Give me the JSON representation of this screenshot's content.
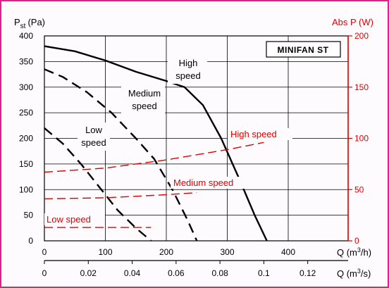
{
  "chart_data": {
    "type": "line",
    "title": "MINIFAN ST",
    "left_axis_label_main": "P",
    "left_axis_label_sub": "st",
    "left_axis_label_unit": "(Pa)",
    "right_axis_label": "Abs P (W)",
    "x_axis_label_main": "Q (m",
    "x_axis_label_sup": "3",
    "x_axis_label_unit": "/h)",
    "x2_axis_label_main": "Q (m",
    "x2_axis_label_sup": "3",
    "x2_axis_label_unit": "/s)",
    "xlim": [
      0,
      500
    ],
    "ylim_left": [
      0,
      400
    ],
    "ylim_right": [
      0,
      200
    ],
    "x_ticks": [
      "0",
      "100",
      "200",
      "300",
      "400"
    ],
    "x2_ticks": [
      "0",
      "0.02",
      "0.04",
      "0.06",
      "0.08",
      "0.1",
      "0.12"
    ],
    "y_ticks_left": [
      "0",
      "50",
      "100",
      "150",
      "200",
      "250",
      "300",
      "350",
      "400"
    ],
    "y_ticks_right": [
      "0",
      "50",
      "100",
      "150",
      "200"
    ],
    "grid": true,
    "colors": {
      "pressure": "#000000",
      "power": "#e00000",
      "border": "#e0218a"
    },
    "pressure_series": [
      {
        "name": "High speed",
        "label_line1": "High",
        "label_line2": "speed",
        "x": [
          0,
          50,
          100,
          150,
          200,
          230,
          260,
          290,
          320,
          345,
          365
        ],
        "y": [
          380,
          370,
          352,
          330,
          312,
          300,
          265,
          200,
          120,
          50,
          0
        ]
      },
      {
        "name": "Medium speed",
        "label_line1": "Medium",
        "label_line2": "speed",
        "x": [
          0,
          30,
          70,
          110,
          150,
          180,
          210,
          235,
          250
        ],
        "y": [
          335,
          320,
          290,
          250,
          200,
          160,
          100,
          40,
          0
        ]
      },
      {
        "name": "Low speed",
        "label_line1": "Low",
        "label_line2": "speed",
        "x": [
          0,
          30,
          60,
          90,
          120,
          150,
          175
        ],
        "y": [
          220,
          190,
          150,
          105,
          60,
          25,
          0
        ]
      }
    ],
    "power_series": [
      {
        "name": "High speed",
        "label": "High speed",
        "x": [
          0,
          100,
          200,
          300,
          360
        ],
        "y": [
          67,
          71,
          79,
          89,
          96
        ]
      },
      {
        "name": "Medium speed",
        "label": "Medium speed",
        "x": [
          0,
          100,
          200,
          250
        ],
        "y": [
          41,
          42,
          45,
          47
        ]
      },
      {
        "name": "Low speed",
        "label": "Low speed",
        "x": [
          0,
          100,
          175
        ],
        "y": [
          13,
          13,
          13
        ]
      }
    ]
  }
}
